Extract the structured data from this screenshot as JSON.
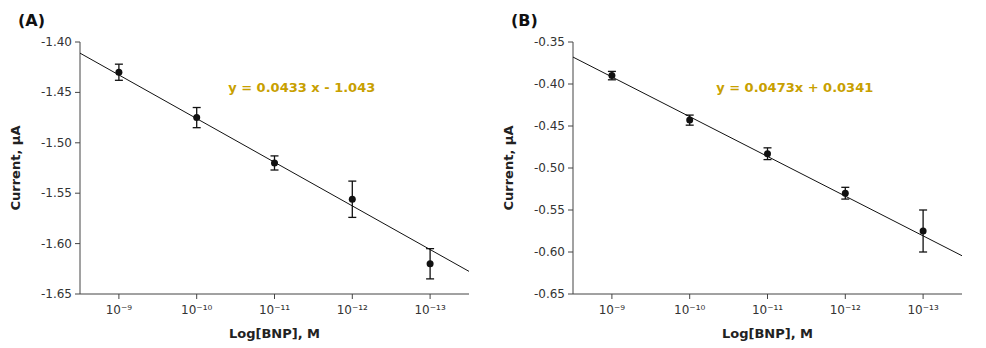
{
  "chart_data": [
    {
      "type": "scatter",
      "title": "(A)",
      "xlabel": "Log[BNP], M",
      "ylabel": "Current, μA",
      "x": [
        -9,
        -10,
        -11,
        -12,
        -13
      ],
      "values": [
        -1.43,
        -1.475,
        -1.52,
        -1.556,
        -1.62
      ],
      "errors": [
        0.008,
        0.01,
        0.007,
        0.018,
        0.015
      ],
      "color": "#111111",
      "fit_line": {
        "slope": 0.0433,
        "intercept": -1.043,
        "color": "#111111"
      },
      "annotations": [
        {
          "text": "y = 0.0433 x - 1.043",
          "color": "#C8A000"
        }
      ],
      "xlim": [
        -8.5,
        -13.5
      ],
      "xticks": [
        {
          "value": -9,
          "label": "10⁻⁹"
        },
        {
          "value": -10,
          "label": "10⁻¹⁰"
        },
        {
          "value": -11,
          "label": "10⁻¹¹"
        },
        {
          "value": -12,
          "label": "10⁻¹²"
        },
        {
          "value": -13,
          "label": "10⁻¹³"
        }
      ],
      "ylim": [
        -1.65,
        -1.4
      ],
      "yticks": [
        {
          "value": -1.4,
          "label": "-1.40"
        },
        -1.45,
        {
          "value": -1.5,
          "label": "-1.50"
        },
        -1.55,
        {
          "value": -1.6,
          "label": "-1.60"
        },
        -1.65
      ],
      "grid": false
    },
    {
      "type": "scatter",
      "title": "(B)",
      "xlabel": "Log[BNP], M",
      "ylabel": "Current, μA",
      "x": [
        -9,
        -10,
        -11,
        -12,
        -13
      ],
      "values": [
        -0.39,
        -0.443,
        -0.483,
        -0.53,
        -0.575
      ],
      "errors": [
        0.005,
        0.006,
        0.007,
        0.007,
        0.025
      ],
      "color": "#111111",
      "fit_line": {
        "slope": 0.0473,
        "intercept": 0.0341,
        "color": "#111111"
      },
      "annotations": [
        {
          "text": "y = 0.0473x + 0.0341",
          "color": "#C8A000"
        }
      ],
      "xlim": [
        -8.5,
        -13.5
      ],
      "xticks": [
        {
          "value": -9,
          "label": "10⁻⁹"
        },
        {
          "value": -10,
          "label": "10⁻¹⁰"
        },
        {
          "value": -11,
          "label": "10⁻¹¹"
        },
        {
          "value": -12,
          "label": "10⁻¹²"
        },
        {
          "value": -13,
          "label": "10⁻¹³"
        }
      ],
      "ylim": [
        -0.65,
        -0.35
      ],
      "yticks": [
        -0.35,
        {
          "value": -0.4,
          "label": "-0.40"
        },
        -0.45,
        {
          "value": -0.5,
          "label": "-0.50"
        },
        -0.55,
        {
          "value": -0.6,
          "label": "-0.60"
        },
        -0.65
      ],
      "grid": false
    }
  ]
}
